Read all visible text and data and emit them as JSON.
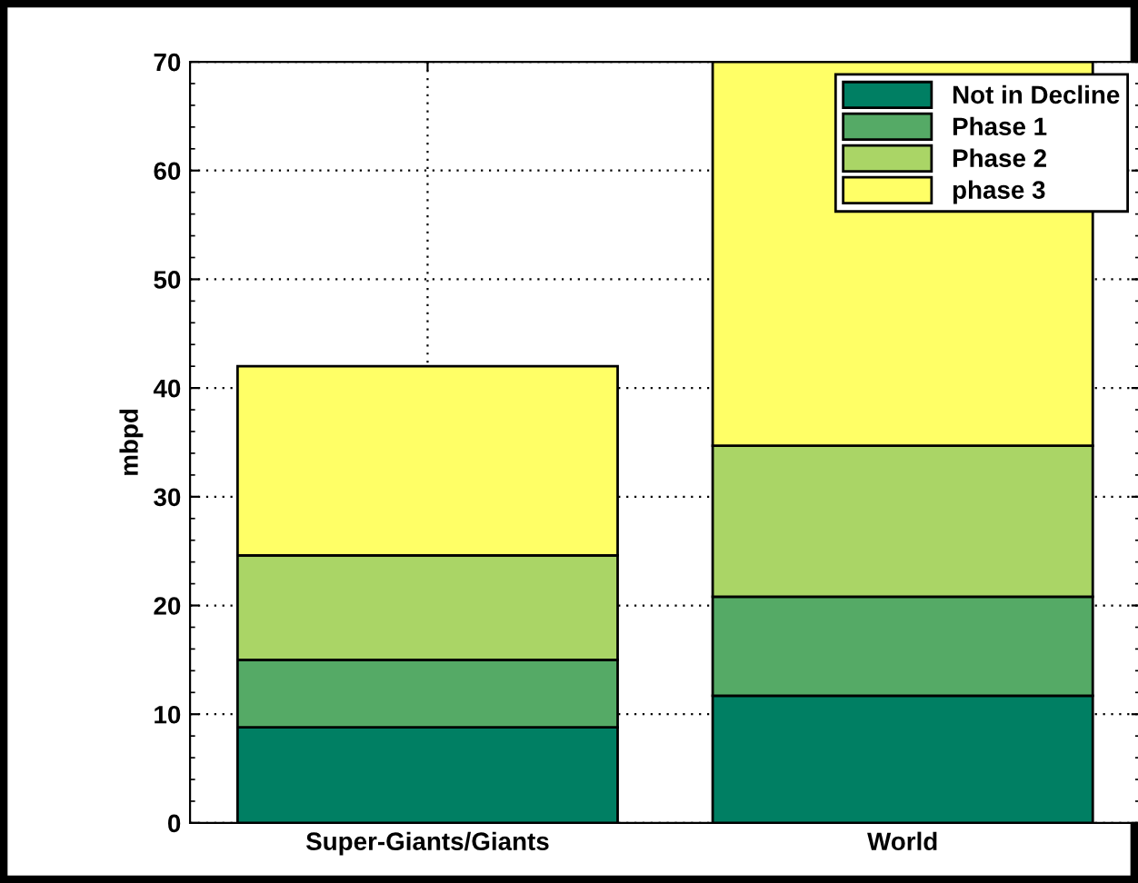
{
  "chart_data": {
    "type": "bar",
    "stacked": true,
    "ylabel": "mbpd",
    "categories": [
      "Super-Giants/Giants",
      "World"
    ],
    "series": [
      {
        "name": "Not in Decline",
        "color": "#007f63",
        "values": [
          8.8,
          11.7
        ]
      },
      {
        "name": "Phase 1",
        "color": "#55aa66",
        "values": [
          6.2,
          9.1
        ]
      },
      {
        "name": "Phase 2",
        "color": "#aad566",
        "values": [
          9.6,
          13.9
        ]
      },
      {
        "name": "phase 3",
        "color": "#ffff66",
        "values": [
          17.4,
          35.3
        ]
      }
    ],
    "ylim": [
      0,
      70
    ],
    "yticks": [
      0,
      10,
      20,
      30,
      40,
      50,
      60,
      70
    ],
    "grid": true,
    "legend": "top right"
  }
}
